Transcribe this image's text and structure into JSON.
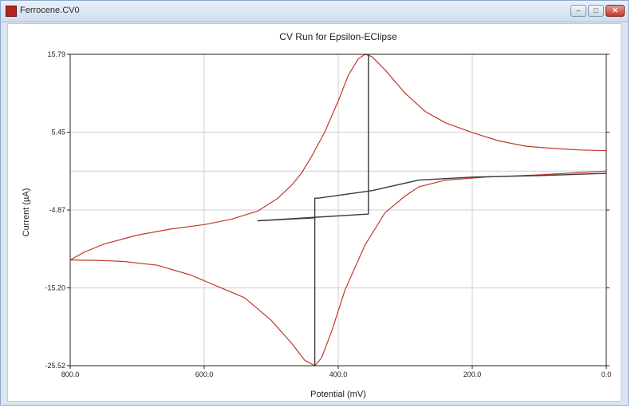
{
  "window": {
    "title": "Ferrocene.CV0",
    "buttons": {
      "minimize": "–",
      "maximize": "□",
      "close": "✕"
    },
    "icon": "app-icon"
  },
  "chart_data": {
    "type": "line",
    "title": "CV Run for Epsilon-EClipse",
    "xlabel": "Potential (mV)",
    "ylabel": "Current (µA)",
    "xlim": [
      800.0,
      0.0
    ],
    "ylim": [
      -25.52,
      15.79
    ],
    "x_ticks": [
      "800.0",
      "600.0",
      "400.0",
      "200.0",
      "0.0"
    ],
    "y_ticks": [
      "15.79",
      "5.45",
      "-4.87",
      "-15.20",
      "-25.52"
    ],
    "reference_lines": [
      0.3
    ],
    "grid": true,
    "colors": {
      "cv_curve": "#c0392b",
      "current_trace": "#3a3a3a",
      "grid": "#cfcfcf",
      "reference": "#c8cce8"
    },
    "series": [
      {
        "color": "#c0392b",
        "points": [
          [
            800,
            -11.5
          ],
          [
            780,
            -10.5
          ],
          [
            750,
            -9.4
          ],
          [
            700,
            -8.2
          ],
          [
            650,
            -7.4
          ],
          [
            600,
            -6.8
          ],
          [
            560,
            -6.1
          ],
          [
            520,
            -5.0
          ],
          [
            490,
            -3.3
          ],
          [
            470,
            -1.6
          ],
          [
            455,
            0.0
          ],
          [
            440,
            2.2
          ],
          [
            420,
            5.5
          ],
          [
            400,
            9.6
          ],
          [
            385,
            13.0
          ],
          [
            370,
            15.2
          ],
          [
            360,
            15.79
          ],
          [
            350,
            15.5
          ],
          [
            330,
            13.7
          ],
          [
            300,
            10.6
          ],
          [
            270,
            8.2
          ],
          [
            240,
            6.7
          ],
          [
            200,
            5.4
          ],
          [
            160,
            4.3
          ],
          [
            120,
            3.6
          ],
          [
            80,
            3.3
          ],
          [
            40,
            3.1
          ],
          [
            0,
            3.0
          ]
        ]
      },
      {
        "color": "#c0392b",
        "points": [
          [
            0,
            0.3
          ],
          [
            40,
            0.1
          ],
          [
            100,
            -0.2
          ],
          [
            180,
            -0.5
          ],
          [
            240,
            -0.9
          ],
          [
            280,
            -1.8
          ],
          [
            300,
            -3.0
          ],
          [
            330,
            -5.2
          ],
          [
            360,
            -9.5
          ],
          [
            390,
            -15.5
          ],
          [
            410,
            -21.0
          ],
          [
            425,
            -24.5
          ],
          [
            435,
            -25.52
          ],
          [
            450,
            -24.8
          ],
          [
            470,
            -22.5
          ],
          [
            500,
            -19.5
          ],
          [
            540,
            -16.5
          ],
          [
            580,
            -15.0
          ],
          [
            620,
            -13.5
          ],
          [
            670,
            -12.2
          ],
          [
            720,
            -11.7
          ],
          [
            760,
            -11.55
          ],
          [
            800,
            -11.5
          ]
        ]
      },
      {
        "color": "#3a3a3a",
        "points": [
          [
            0,
            0.0
          ],
          [
            100,
            -0.3
          ],
          [
            200,
            -0.5
          ],
          [
            280,
            -0.9
          ],
          [
            350,
            -2.3
          ],
          [
            430,
            -3.3
          ],
          [
            435,
            -3.3
          ],
          [
            435,
            -25.52
          ],
          [
            435,
            -5.9
          ],
          [
            520,
            -6.3
          ],
          [
            355,
            -5.4
          ],
          [
            355,
            15.79
          ],
          [
            355,
            -5.4
          ]
        ]
      }
    ]
  }
}
